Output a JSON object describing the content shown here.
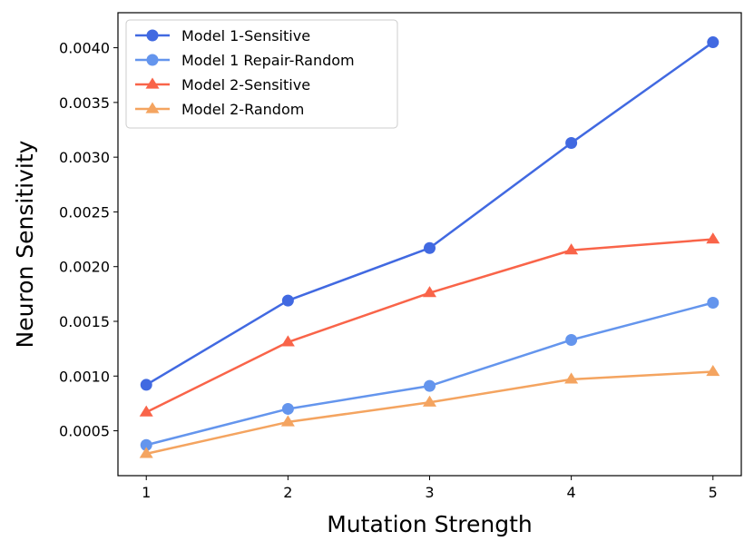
{
  "chart_data": {
    "type": "line",
    "xlabel": "Mutation Strength",
    "ylabel": "Neuron Sensitivity",
    "x": [
      1,
      2,
      3,
      4,
      5
    ],
    "xticks": [
      "1",
      "2",
      "3",
      "4",
      "5"
    ],
    "yticks": [
      "0.0005",
      "0.0010",
      "0.0015",
      "0.0020",
      "0.0025",
      "0.0030",
      "0.0035",
      "0.0040"
    ],
    "xlim": [
      0.8,
      5.2
    ],
    "ylim": [
      9e-05,
      0.00432
    ],
    "grid": false,
    "legend_position": "top-left",
    "series": [
      {
        "name": "Model 1-Sensitive",
        "color": "#4169e1",
        "marker": "circle",
        "values": [
          0.00092,
          0.00169,
          0.00217,
          0.00313,
          0.00405
        ]
      },
      {
        "name": "Model 1 Repair-Random",
        "color": "#6495ed",
        "marker": "circle",
        "values": [
          0.00037,
          0.0007,
          0.00091,
          0.00133,
          0.00167
        ]
      },
      {
        "name": "Model 2-Sensitive",
        "color": "#f96449",
        "marker": "triangle",
        "values": [
          0.00067,
          0.00131,
          0.00176,
          0.00215,
          0.00225
        ]
      },
      {
        "name": "Model 2-Random",
        "color": "#f4a460",
        "marker": "triangle",
        "values": [
          0.00029,
          0.00058,
          0.00076,
          0.00097,
          0.00104
        ]
      }
    ]
  }
}
